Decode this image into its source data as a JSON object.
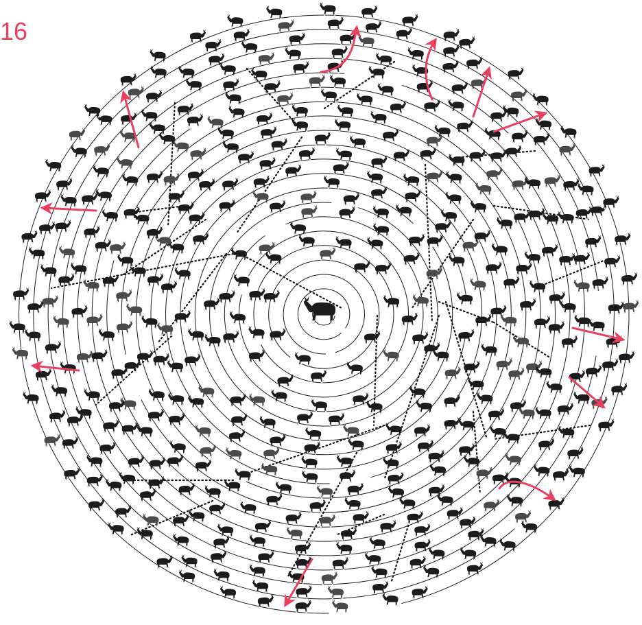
{
  "figure": {
    "label": "16"
  },
  "colors": {
    "ring": "#1a1a1a",
    "animal": "#1c1c1c",
    "animal_gray": "#4a4a4a",
    "dotted_link": "#111111",
    "arrow": "#e8405f",
    "label": "#e8405f"
  },
  "icons": {
    "center": "moose-center-icon",
    "animal": "moose-icon",
    "arrow": "red-arrow",
    "link": "dotted-link"
  }
}
